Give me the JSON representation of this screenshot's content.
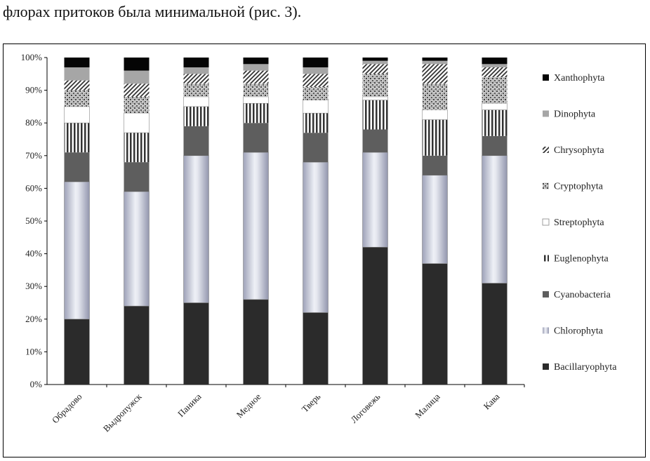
{
  "page": {
    "header_text": "флорах притоков была минимальной (рис. 3)."
  },
  "colors": {
    "Bacillaryophyta": "#2b2b2b",
    "Chlorophyta": "#b8bccc",
    "Cyanobacteria": "#5e5e5e",
    "Euglenophyta": "#8a8a8a",
    "Streptophyta": "#ffffff",
    "Cryptophyta": "#a8a8a8",
    "Chrysophyta": "#6f6f6f",
    "Dinophyta": "#a6a6a6",
    "Xanthophyta": "#050505"
  },
  "chart_data": {
    "type": "bar",
    "stacked": true,
    "percent": true,
    "title": "",
    "xlabel": "",
    "ylabel": "",
    "ylim": [
      0,
      100
    ],
    "y_ticks": [
      "0%",
      "10%",
      "20%",
      "30%",
      "40%",
      "50%",
      "60%",
      "70%",
      "80%",
      "90%",
      "100%"
    ],
    "grid": false,
    "legend_position": "right",
    "categories": [
      "Обрадово",
      "Выдропужск",
      "Паника",
      "Медное",
      "Тверь",
      "Логовежь",
      "Малица",
      "Кава"
    ],
    "series": [
      {
        "name": "Bacillaryophyta",
        "values": [
          20,
          24,
          25,
          26,
          22,
          42,
          37,
          31
        ]
      },
      {
        "name": "Chlorophyta",
        "values": [
          42,
          35,
          45,
          45,
          46,
          29,
          27,
          39
        ]
      },
      {
        "name": "Cyanobacteria",
        "values": [
          9,
          9,
          9,
          9,
          9,
          7,
          6,
          6
        ]
      },
      {
        "name": "Euglenophyta",
        "values": [
          9,
          9,
          6,
          6,
          6,
          9,
          11,
          8
        ]
      },
      {
        "name": "Streptophyta",
        "values": [
          5,
          6,
          3,
          2,
          4,
          1,
          3,
          2
        ]
      },
      {
        "name": "Cryptophyta",
        "values": [
          5,
          5,
          4,
          4,
          4,
          7,
          8,
          8
        ]
      },
      {
        "name": "Chrysophyta",
        "values": [
          3,
          4,
          3,
          4,
          4,
          3,
          6,
          3
        ]
      },
      {
        "name": "Dinophyta",
        "values": [
          4,
          4,
          2,
          2,
          2,
          1,
          1,
          1
        ]
      },
      {
        "name": "Xanthophyta",
        "values": [
          3,
          4,
          3,
          2,
          3,
          1,
          1,
          2
        ]
      }
    ]
  }
}
